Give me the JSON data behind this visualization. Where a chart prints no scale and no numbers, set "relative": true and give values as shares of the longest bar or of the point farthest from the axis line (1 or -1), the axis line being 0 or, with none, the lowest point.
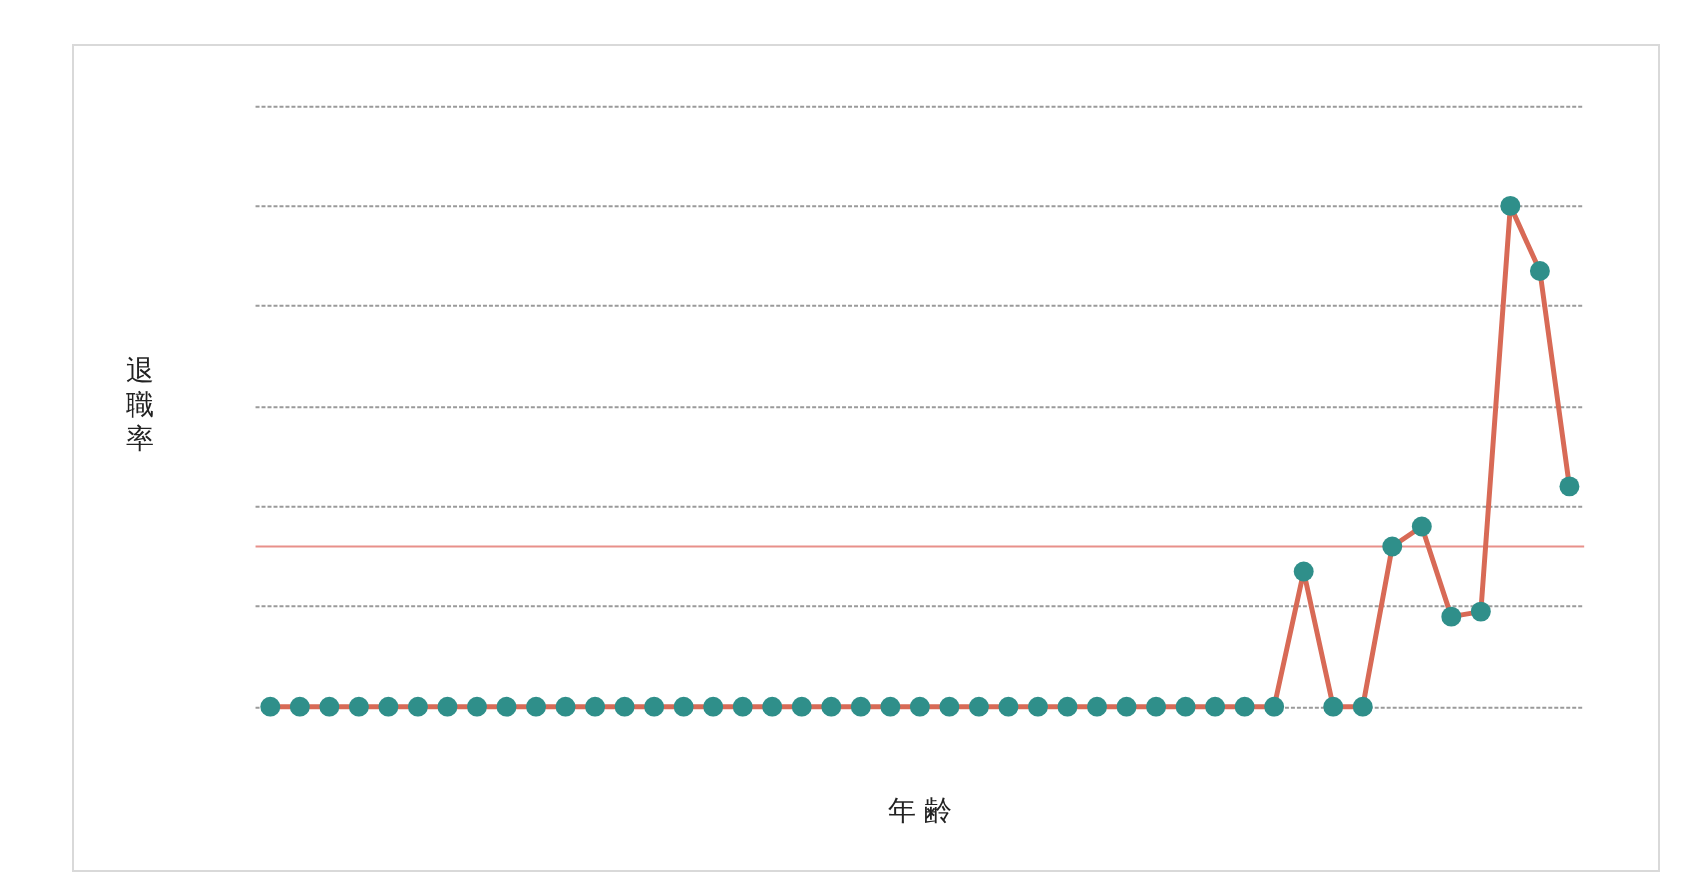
{
  "chart_data": {
    "type": "line",
    "xlabel": "年 齢",
    "ylabel": "退職率",
    "relative": true,
    "grid": "y",
    "marker": "circle",
    "line_style": "solid",
    "categories": [
      null,
      null,
      null,
      null,
      null,
      null,
      null,
      null,
      null,
      null,
      null,
      null,
      null,
      null,
      null,
      null,
      null,
      null,
      null,
      null,
      null,
      null,
      null,
      null,
      null,
      null,
      null,
      null,
      null,
      null,
      null,
      null,
      null,
      null,
      null,
      null,
      null,
      null,
      null,
      null,
      null,
      null,
      null,
      null,
      null
    ],
    "ref_lines": [
      {
        "axis": "y",
        "value": 0.32,
        "color": "#e8908a"
      }
    ],
    "series": [
      {
        "color": "#d86a56",
        "colors": [
          "#2f8f8a",
          "#2f8f8a",
          "#2f8f8a",
          "#2f8f8a",
          "#2f8f8a",
          "#2f8f8a",
          "#2f8f8a",
          "#2f8f8a",
          "#2f8f8a",
          "#2f8f8a",
          "#2f8f8a",
          "#2f8f8a",
          "#2f8f8a",
          "#2f8f8a",
          "#2f8f8a",
          "#2f8f8a",
          "#2f8f8a",
          "#2f8f8a",
          "#2f8f8a",
          "#2f8f8a",
          "#2f8f8a",
          "#2f8f8a",
          "#2f8f8a",
          "#2f8f8a",
          "#2f8f8a",
          "#2f8f8a",
          "#2f8f8a",
          "#2f8f8a",
          "#2f8f8a",
          "#2f8f8a",
          "#2f8f8a",
          "#2f8f8a",
          "#2f8f8a",
          "#2f8f8a",
          "#2f8f8a",
          "#2f8f8a",
          "#2f8f8a",
          "#2f8f8a",
          "#2f8f8a",
          "#2f8f8a",
          "#2f8f8a",
          "#2f8f8a",
          "#2f8f8a",
          "#2f8f8a",
          "#2f8f8a"
        ],
        "values": [
          0,
          0,
          0,
          0,
          0,
          0,
          0,
          0,
          0,
          0,
          0,
          0,
          0,
          0,
          0,
          0,
          0,
          0,
          0,
          0,
          0,
          0,
          0,
          0,
          0,
          0,
          0,
          0,
          0,
          0,
          0,
          0,
          0,
          0,
          0,
          0.27,
          0,
          0,
          0.32,
          0.36,
          0.18,
          0.19,
          1,
          0.87,
          0.44
        ]
      }
    ]
  }
}
